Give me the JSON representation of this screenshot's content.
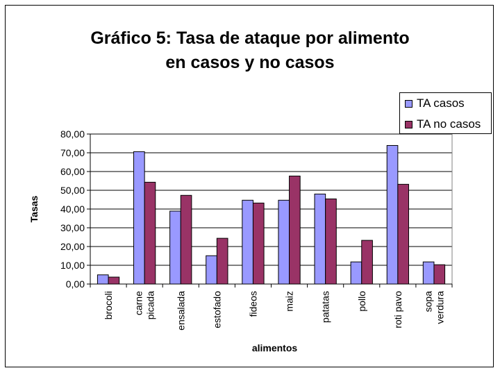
{
  "chart_data": {
    "type": "bar",
    "title_line1": "Gráfico 5: Tasa de ataque por alimento",
    "title_line2": "en casos y no casos",
    "xlabel": "alimentos",
    "ylabel": "Tasas",
    "ylim": [
      0,
      80
    ],
    "yticks": [
      "0,00",
      "10,00",
      "20,00",
      "30,00",
      "40,00",
      "50,00",
      "60,00",
      "70,00",
      "80,00"
    ],
    "grid": true,
    "legend_position": "top-right",
    "categories": [
      "brocoli",
      "carne picada",
      "ensalada",
      "estofado",
      "fideos",
      "maiz",
      "patatas",
      "pollo",
      "roti pavo",
      "sopa verdura"
    ],
    "category_lines": [
      [
        "brocoli"
      ],
      [
        "carne",
        "picada"
      ],
      [
        "ensalada"
      ],
      [
        "estofado"
      ],
      [
        "fideos"
      ],
      [
        "maiz"
      ],
      [
        "patatas"
      ],
      [
        "pollo"
      ],
      [
        "roti pavo"
      ],
      [
        "sopa",
        "verdura"
      ]
    ],
    "series": [
      {
        "name": "TA casos",
        "color": "#9999FF",
        "values": [
          4.9,
          70.6,
          38.9,
          15.1,
          44.7,
          44.7,
          48.0,
          11.8,
          73.9,
          11.8
        ]
      },
      {
        "name": "TA no casos",
        "color": "#993366",
        "values": [
          3.7,
          54.3,
          47.3,
          24.4,
          43.2,
          57.6,
          45.4,
          23.3,
          53.2,
          10.3
        ]
      }
    ]
  }
}
